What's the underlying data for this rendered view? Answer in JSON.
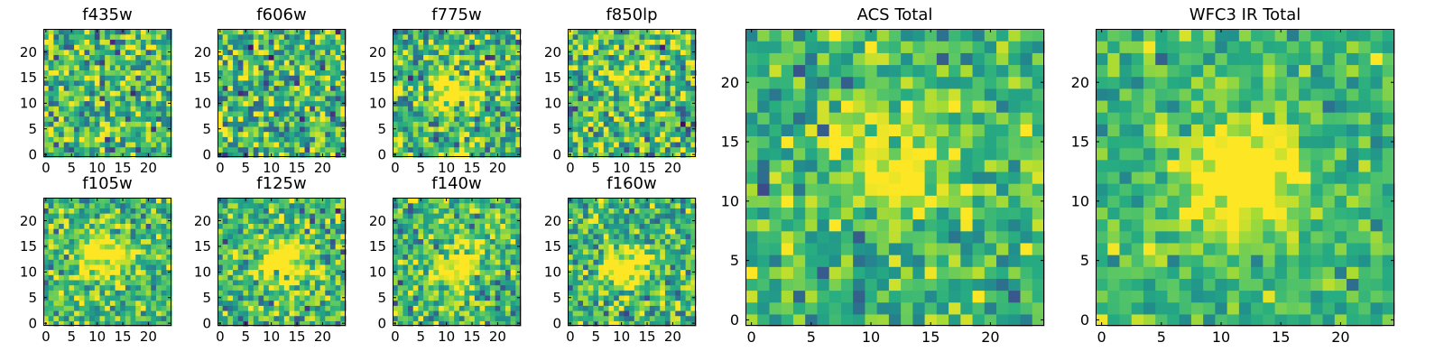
{
  "figure": {
    "panels": [
      {
        "title": "f435w"
      },
      {
        "title": "f606w"
      },
      {
        "title": "f775w"
      },
      {
        "title": "f850lp"
      },
      {
        "title": "f105w"
      },
      {
        "title": "f125w"
      },
      {
        "title": "f140w"
      },
      {
        "title": "f160w"
      },
      {
        "title": "ACS Total"
      },
      {
        "title": "WFC3 IR Total"
      }
    ]
  },
  "chart_data": [
    {
      "type": "heatmap",
      "title": "f435w",
      "grid_size": [
        25,
        25
      ],
      "source_center": null,
      "source_strength": 0.0,
      "noise": 0.55,
      "xlim": [
        -0.5,
        24.5
      ],
      "ylim": [
        -0.5,
        24.5
      ],
      "xticks": [
        0,
        5,
        10,
        15,
        20
      ],
      "yticks": [
        0,
        5,
        10,
        15,
        20
      ],
      "colormap": "viridis",
      "grid": false
    },
    {
      "type": "heatmap",
      "title": "f606w",
      "grid_size": [
        25,
        25
      ],
      "source_center": null,
      "source_strength": 0.0,
      "noise": 0.55,
      "xlim": [
        -0.5,
        24.5
      ],
      "ylim": [
        -0.5,
        24.5
      ],
      "xticks": [
        0,
        5,
        10,
        15,
        20
      ],
      "yticks": [
        0,
        5,
        10,
        15,
        20
      ],
      "colormap": "viridis",
      "grid": false
    },
    {
      "type": "heatmap",
      "title": "f775w",
      "grid_size": [
        25,
        25
      ],
      "source_center": [
        12,
        13
      ],
      "source_strength": 0.35,
      "noise": 0.5,
      "xlim": [
        -0.5,
        24.5
      ],
      "ylim": [
        -0.5,
        24.5
      ],
      "xticks": [
        0,
        5,
        10,
        15,
        20
      ],
      "yticks": [
        0,
        5,
        10,
        15,
        20
      ],
      "colormap": "viridis",
      "grid": false
    },
    {
      "type": "heatmap",
      "title": "f850lp",
      "grid_size": [
        25,
        25
      ],
      "source_center": [
        12,
        13
      ],
      "source_strength": 0.15,
      "noise": 0.55,
      "xlim": [
        -0.5,
        24.5
      ],
      "ylim": [
        -0.5,
        24.5
      ],
      "xticks": [
        0,
        5,
        10,
        15,
        20
      ],
      "yticks": [
        0,
        5,
        10,
        15,
        20
      ],
      "colormap": "viridis",
      "grid": false
    },
    {
      "type": "heatmap",
      "title": "f105w",
      "grid_size": [
        25,
        25
      ],
      "source_center": [
        12,
        13
      ],
      "source_strength": 0.5,
      "noise": 0.4,
      "xlim": [
        -0.5,
        24.5
      ],
      "ylim": [
        -0.5,
        24.5
      ],
      "xticks": [
        0,
        5,
        10,
        15,
        20
      ],
      "yticks": [
        0,
        5,
        10,
        15,
        20
      ],
      "colormap": "viridis",
      "grid": false
    },
    {
      "type": "heatmap",
      "title": "f125w",
      "grid_size": [
        25,
        25
      ],
      "source_center": [
        12,
        12
      ],
      "source_strength": 0.45,
      "noise": 0.45,
      "xlim": [
        -0.5,
        24.5
      ],
      "ylim": [
        -0.5,
        24.5
      ],
      "xticks": [
        0,
        5,
        10,
        15,
        20
      ],
      "yticks": [
        0,
        5,
        10,
        15,
        20
      ],
      "colormap": "viridis",
      "grid": false
    },
    {
      "type": "heatmap",
      "title": "f140w",
      "grid_size": [
        25,
        25
      ],
      "source_center": [
        12,
        11
      ],
      "source_strength": 0.5,
      "noise": 0.45,
      "xlim": [
        -0.5,
        24.5
      ],
      "ylim": [
        -0.5,
        24.5
      ],
      "xticks": [
        0,
        5,
        10,
        15,
        20
      ],
      "yticks": [
        0,
        5,
        10,
        15,
        20
      ],
      "colormap": "viridis",
      "grid": false
    },
    {
      "type": "heatmap",
      "title": "f160w",
      "grid_size": [
        25,
        25
      ],
      "source_center": [
        11,
        11
      ],
      "source_strength": 0.5,
      "noise": 0.45,
      "xlim": [
        -0.5,
        24.5
      ],
      "ylim": [
        -0.5,
        24.5
      ],
      "xticks": [
        0,
        5,
        10,
        15,
        20
      ],
      "yticks": [
        0,
        5,
        10,
        15,
        20
      ],
      "colormap": "viridis",
      "grid": false
    },
    {
      "type": "heatmap",
      "title": "ACS Total",
      "grid_size": [
        25,
        25
      ],
      "source_center": [
        12,
        13
      ],
      "source_strength": 0.35,
      "noise": 0.38,
      "xlim": [
        -0.5,
        24.5
      ],
      "ylim": [
        -0.5,
        24.5
      ],
      "xticks": [
        0,
        5,
        10,
        15,
        20
      ],
      "yticks": [
        0,
        5,
        10,
        15,
        20
      ],
      "colormap": "viridis",
      "grid": false
    },
    {
      "type": "heatmap",
      "title": "WFC3 IR Total",
      "grid_size": [
        25,
        25
      ],
      "source_center": [
        12,
        12
      ],
      "source_strength": 0.65,
      "noise": 0.3,
      "xlim": [
        -0.5,
        24.5
      ],
      "ylim": [
        -0.5,
        24.5
      ],
      "xticks": [
        0,
        5,
        10,
        15,
        20
      ],
      "yticks": [
        0,
        5,
        10,
        15,
        20
      ],
      "colormap": "viridis",
      "grid": false
    }
  ]
}
